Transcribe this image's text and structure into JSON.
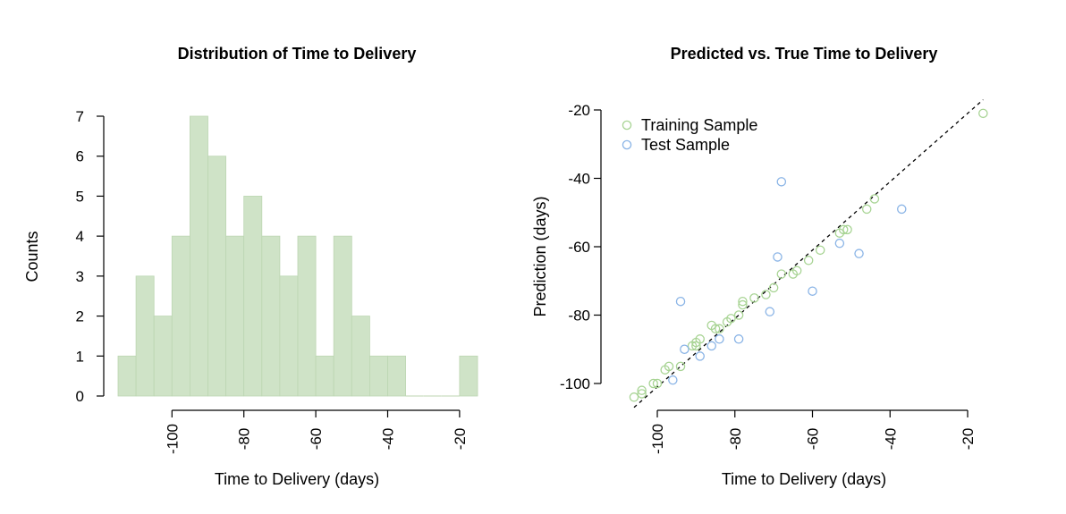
{
  "chart_data": [
    {
      "type": "bar",
      "title": "Distribution of Time to Delivery",
      "xlabel": "Time to Delivery (days)",
      "ylabel": "Counts",
      "bin_width": 5,
      "bin_start": -115,
      "values": [
        1,
        3,
        2,
        4,
        7,
        6,
        4,
        5,
        4,
        3,
        4,
        1,
        4,
        2,
        1,
        1,
        0,
        0,
        0,
        1
      ],
      "xlim": [
        -115,
        -15
      ],
      "ylim": [
        0,
        7
      ],
      "xticks": [
        -100,
        -80,
        -60,
        -40,
        -20
      ],
      "xtick_labels": [
        "-100",
        "-80",
        "-60",
        "-40",
        "-20"
      ],
      "yticks": [
        0,
        1,
        2,
        3,
        4,
        5,
        6,
        7
      ],
      "ytick_labels": [
        "0",
        "1",
        "2",
        "3",
        "4",
        "5",
        "6",
        "7"
      ],
      "bar_color": "#cfe3c7",
      "bar_border": "#bcd6b2",
      "grid": false
    },
    {
      "type": "scatter",
      "title": "Predicted vs. True Time to Delivery",
      "xlabel": "Time to Delivery (days)",
      "ylabel": "Prediction (days)",
      "xlim": [
        -107,
        -16
      ],
      "ylim": [
        -107,
        -20
      ],
      "xticks": [
        -100,
        -80,
        -60,
        -40,
        -20
      ],
      "xtick_labels": [
        "-100",
        "-80",
        "-60",
        "-40",
        "-20"
      ],
      "yticks": [
        -100,
        -80,
        -60,
        -40,
        -20
      ],
      "ytick_labels": [
        "-100",
        "-80",
        "-60",
        "-40",
        "-20"
      ],
      "reference_line": {
        "style": "dashed",
        "x": [
          -106,
          -16
        ],
        "y": [
          -107,
          -17
        ]
      },
      "legend_position": "top-left",
      "grid": false,
      "series": [
        {
          "name": "Training Sample",
          "color": "#a8d494",
          "marker": "open-circle",
          "x": [
            -106,
            -104,
            -104,
            -101,
            -100,
            -98,
            -97,
            -94,
            -91,
            -90,
            -90,
            -89,
            -86,
            -85,
            -84,
            -82,
            -81,
            -79,
            -78,
            -78,
            -75,
            -72,
            -70,
            -68,
            -65,
            -64,
            -61,
            -58,
            -53,
            -52,
            -51,
            -46,
            -44,
            -16
          ],
          "y": [
            -104,
            -103,
            -102,
            -100,
            -100,
            -96,
            -95,
            -95,
            -89,
            -88,
            -89,
            -87,
            -83,
            -84,
            -84,
            -82,
            -81,
            -80,
            -77,
            -76,
            -75,
            -74,
            -72,
            -68,
            -68,
            -67,
            -64,
            -61,
            -56,
            -55,
            -55,
            -49,
            -46,
            -21
          ]
        },
        {
          "name": "Test Sample",
          "color": "#8ab4e6",
          "marker": "open-circle",
          "x": [
            -96,
            -94,
            -93,
            -89,
            -86,
            -84,
            -79,
            -71,
            -69,
            -68,
            -60,
            -53,
            -48,
            -37
          ],
          "y": [
            -99,
            -76,
            -90,
            -92,
            -89,
            -87,
            -87,
            -79,
            -63,
            -41,
            -73,
            -59,
            -62,
            -49
          ]
        }
      ]
    }
  ]
}
